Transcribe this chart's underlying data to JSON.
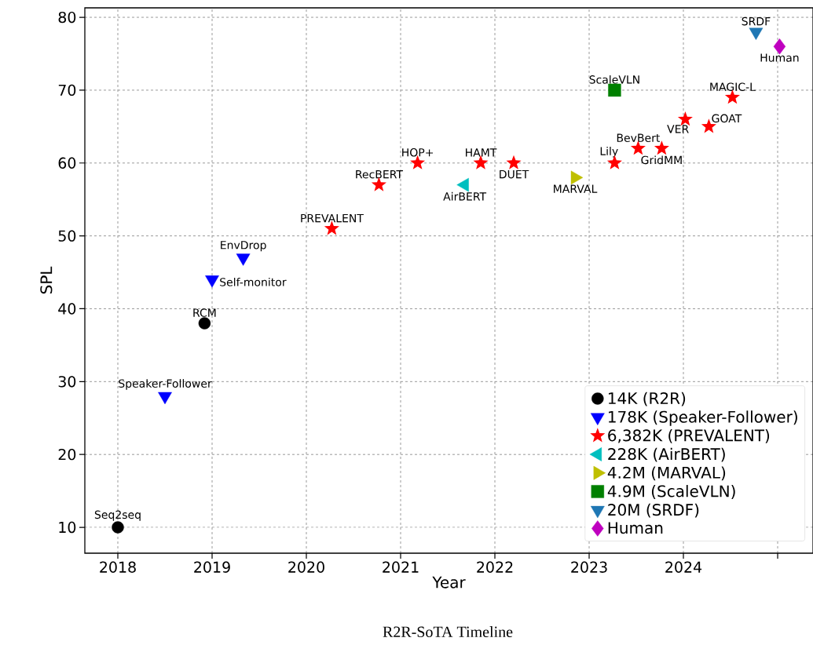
{
  "chart_data": {
    "type": "scatter",
    "title": "R2R-SoTA Timeline",
    "xlabel": "Year",
    "ylabel": "SPL",
    "xlim": [
      2017.65,
      2025.375
    ],
    "ylim": [
      6.45,
      81.3
    ],
    "xticks": [
      2018,
      2019,
      2020,
      2021,
      2022,
      2023,
      2024,
      {
        "value": 2025,
        "label": null
      }
    ],
    "yticks": [
      10,
      20,
      30,
      40,
      50,
      60,
      70,
      80
    ],
    "grid": true,
    "legend": "bottom right",
    "series": [
      {
        "name": "14K (R2R)",
        "color": "#000000",
        "marker": "circle",
        "x": [
          2018,
          2018.92
        ],
        "values": [
          10,
          38
        ]
      },
      {
        "name": "178K (Speaker-Follower)",
        "color": "#0000ff",
        "marker": "triangle_down",
        "x": [
          2018.5,
          2019,
          2019.33
        ],
        "values": [
          28,
          44,
          47
        ]
      },
      {
        "name": "6,382K (PREVALENT)",
        "color": "#ff0000",
        "marker": "star",
        "x": [
          2020.27,
          2020.77,
          2021.18,
          2021.85,
          2022.2,
          2023.27,
          2023.52,
          2023.77,
          2024.02,
          2024.27,
          2024.52
        ],
        "values": [
          51,
          57,
          60,
          60,
          60,
          60,
          62,
          62,
          66,
          65,
          69
        ]
      },
      {
        "name": "228K (AirBERT)",
        "color": "#00bfbf",
        "marker": "triangle_left",
        "x": [
          2021.68
        ],
        "values": [
          57
        ]
      },
      {
        "name": "4.2M (MARVAL)",
        "color": "#bfbf00",
        "marker": "triangle_right",
        "x": [
          2022.85
        ],
        "values": [
          58
        ]
      },
      {
        "name": "4.9M (ScaleVLN)",
        "color": "#008000",
        "marker": "square",
        "x": [
          2023.27
        ],
        "values": [
          70
        ]
      },
      {
        "name": "20M (SRDF)",
        "color": "#1f77b4",
        "marker": "triangle_down",
        "x": [
          2024.77
        ],
        "values": [
          78
        ]
      },
      {
        "name": "Human",
        "color": "#bf00bf",
        "marker": "diamond",
        "x": [
          2025.02
        ],
        "values": [
          76
        ]
      }
    ],
    "annotations": [
      {
        "text": "Seq2seq",
        "x": 2018,
        "y": 10
      },
      {
        "text": "Speaker-Follower",
        "x": 2018.5,
        "y": 28
      },
      {
        "text": "RCM",
        "x": 2018.92,
        "y": 38
      },
      {
        "text": "Self-monitor",
        "x": 2019,
        "y": 44
      },
      {
        "text": "EnvDrop",
        "x": 2019.33,
        "y": 47
      },
      {
        "text": "PREVALENT",
        "x": 2020.27,
        "y": 51
      },
      {
        "text": "RecBERT",
        "x": 2020.77,
        "y": 57
      },
      {
        "text": "HOP+",
        "x": 2021.18,
        "y": 60
      },
      {
        "text": "AirBERT",
        "x": 2021.68,
        "y": 57
      },
      {
        "text": "HAMT",
        "x": 2021.85,
        "y": 60
      },
      {
        "text": "DUET",
        "x": 2022.2,
        "y": 60
      },
      {
        "text": "MARVAL",
        "x": 2022.85,
        "y": 58
      },
      {
        "text": "Lily",
        "x": 2023.27,
        "y": 60
      },
      {
        "text": "ScaleVLN",
        "x": 2023.27,
        "y": 70
      },
      {
        "text": "BevBert",
        "x": 2023.52,
        "y": 62
      },
      {
        "text": "GridMM",
        "x": 2023.77,
        "y": 62
      },
      {
        "text": "VER",
        "x": 2024.02,
        "y": 66
      },
      {
        "text": "GOAT",
        "x": 2024.27,
        "y": 65
      },
      {
        "text": "MAGIC-L",
        "x": 2024.52,
        "y": 69
      },
      {
        "text": "SRDF",
        "x": 2024.77,
        "y": 78
      },
      {
        "text": "Human",
        "x": 2025.02,
        "y": 76
      }
    ]
  }
}
